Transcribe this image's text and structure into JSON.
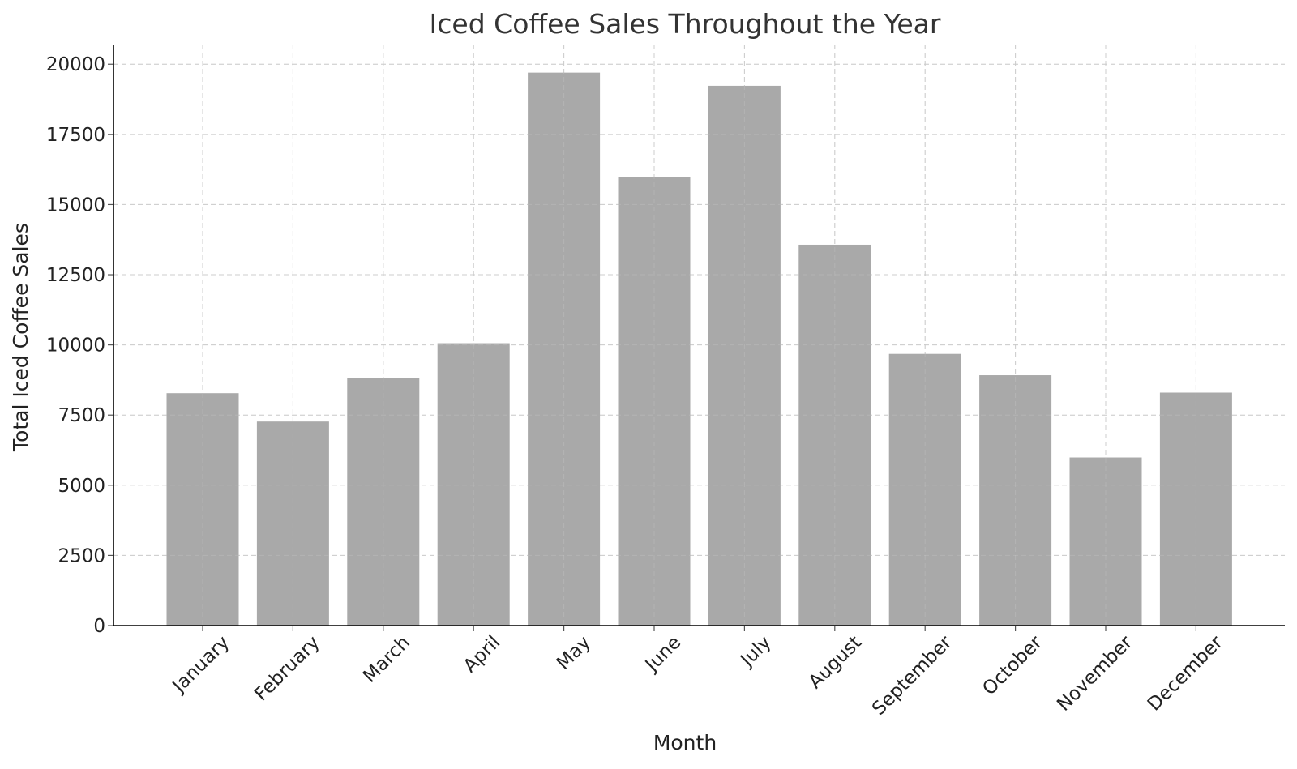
{
  "chart_data": {
    "type": "bar",
    "title": "Iced Coffee Sales Throughout the Year",
    "xlabel": "Month",
    "ylabel": "Total Iced Coffee Sales",
    "categories": [
      "January",
      "February",
      "March",
      "April",
      "May",
      "June",
      "July",
      "August",
      "September",
      "October",
      "November",
      "December"
    ],
    "values": [
      8280,
      7270,
      8830,
      10060,
      19700,
      15980,
      19230,
      13570,
      9680,
      8920,
      5990,
      8300
    ],
    "ylim": [
      0,
      20700
    ],
    "yticks": [
      "0",
      "2500",
      "5000",
      "7500",
      "10000",
      "12500",
      "15000",
      "17500",
      "20000"
    ],
    "bar_color": "#a6a6a6",
    "grid": true,
    "legend": "none"
  }
}
